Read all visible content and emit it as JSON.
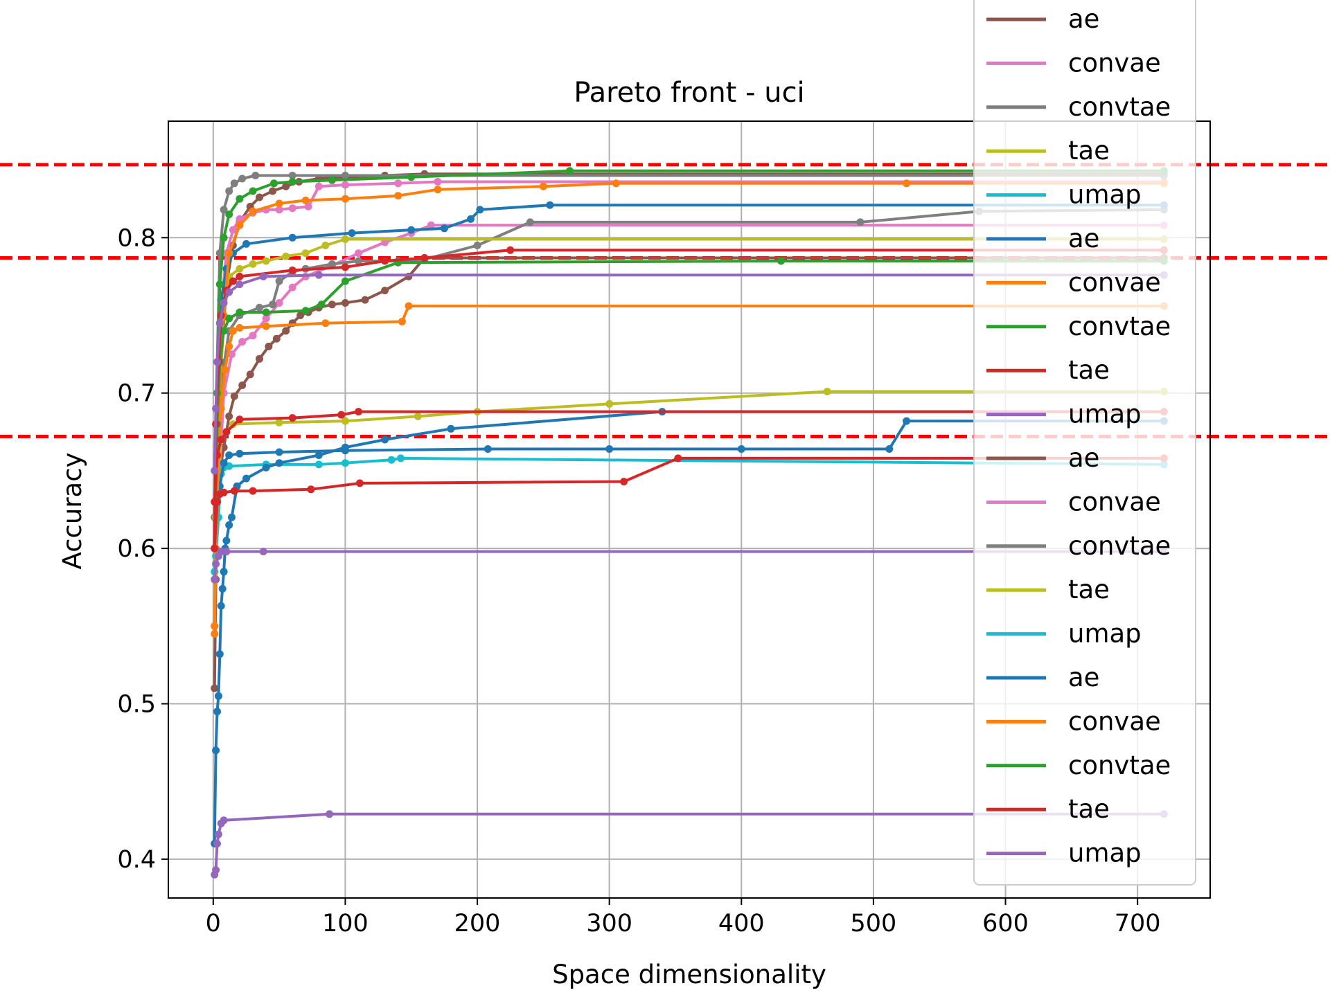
{
  "chart_data": {
    "type": "line",
    "title": "Pareto front - uci",
    "xlabel": "Space dimensionality",
    "ylabel": "Accuracy",
    "xlim": [
      -34,
      755
    ],
    "ylim": [
      0.375,
      0.875
    ],
    "xticks": [
      0,
      100,
      200,
      300,
      400,
      500,
      600,
      700
    ],
    "yticks": [
      0.4,
      0.5,
      0.6,
      0.7,
      0.8
    ],
    "grid": true,
    "legend_position": "upper-right",
    "reference_lines": [
      {
        "y": 0.847,
        "color": "#ff0000",
        "style": "dashed"
      },
      {
        "y": 0.787,
        "color": "#ff0000",
        "style": "dashed"
      },
      {
        "y": 0.672,
        "color": "#ff0000",
        "style": "dashed"
      }
    ],
    "colors": {
      "ae_a": "#8c564b",
      "convae_a": "#e377c2",
      "convtae_a": "#7f7f7f",
      "tae_a": "#bcbd22",
      "umap_a": "#17becf",
      "ae_b": "#1f77b4",
      "convae_b": "#ff7f0e",
      "convtae_b": "#2ca02c",
      "tae_b": "#d62728",
      "umap_b": "#9467bd"
    },
    "series": [
      {
        "name": "ae",
        "color": "#8c564b",
        "x": [
          1,
          2,
          3,
          5,
          8,
          12,
          16,
          22,
          28,
          35,
          42,
          48,
          55,
          60,
          66,
          72,
          80,
          90,
          100,
          115,
          130,
          148,
          160,
          720
        ],
        "y": [
          0.51,
          0.58,
          0.63,
          0.65,
          0.665,
          0.685,
          0.698,
          0.705,
          0.712,
          0.722,
          0.73,
          0.735,
          0.74,
          0.745,
          0.75,
          0.752,
          0.755,
          0.757,
          0.758,
          0.76,
          0.766,
          0.775,
          0.787,
          0.787
        ]
      },
      {
        "name": "ae",
        "color": "#8c564b",
        "x": [
          1,
          3,
          6,
          10,
          15,
          20,
          28,
          35,
          45,
          55,
          65,
          80,
          100,
          130,
          160,
          720
        ],
        "y": [
          0.55,
          0.64,
          0.72,
          0.77,
          0.795,
          0.81,
          0.82,
          0.826,
          0.83,
          0.833,
          0.836,
          0.838,
          0.839,
          0.84,
          0.841,
          0.841
        ]
      },
      {
        "name": "convae",
        "color": "#e377c2",
        "x": [
          1,
          3,
          6,
          10,
          15,
          20,
          30,
          40,
          50,
          60,
          72,
          80,
          100,
          140,
          170,
          720
        ],
        "y": [
          0.6,
          0.7,
          0.755,
          0.79,
          0.805,
          0.812,
          0.816,
          0.818,
          0.818,
          0.819,
          0.82,
          0.833,
          0.834,
          0.835,
          0.836,
          0.836
        ]
      },
      {
        "name": "convae",
        "color": "#e377c2",
        "x": [
          3,
          8,
          14,
          22,
          30,
          40,
          50,
          60,
          70,
          90,
          110,
          130,
          150,
          165,
          720
        ],
        "y": [
          0.62,
          0.7,
          0.725,
          0.733,
          0.737,
          0.748,
          0.758,
          0.768,
          0.775,
          0.782,
          0.79,
          0.797,
          0.803,
          0.808,
          0.808
        ]
      },
      {
        "name": "convtae",
        "color": "#7f7f7f",
        "x": [
          1,
          3,
          5,
          8,
          12,
          16,
          22,
          32,
          60,
          100,
          720
        ],
        "y": [
          0.62,
          0.72,
          0.79,
          0.818,
          0.83,
          0.835,
          0.838,
          0.84,
          0.84,
          0.84,
          0.84
        ]
      },
      {
        "name": "convtae",
        "color": "#7f7f7f",
        "x": [
          5,
          12,
          20,
          35,
          45,
          50,
          60,
          70,
          90,
          110,
          140,
          160,
          200,
          240,
          490,
          580,
          720
        ],
        "y": [
          0.7,
          0.74,
          0.75,
          0.755,
          0.757,
          0.772,
          0.778,
          0.78,
          0.783,
          0.785,
          0.785,
          0.786,
          0.795,
          0.81,
          0.81,
          0.817,
          0.818
        ]
      },
      {
        "name": "tae",
        "color": "#bcbd22",
        "x": [
          2,
          5,
          8,
          12,
          20,
          30,
          40,
          55,
          70,
          85,
          100,
          720
        ],
        "y": [
          0.62,
          0.72,
          0.76,
          0.775,
          0.78,
          0.783,
          0.785,
          0.788,
          0.79,
          0.795,
          0.799,
          0.799
        ]
      },
      {
        "name": "tae",
        "color": "#bcbd22",
        "x": [
          1,
          3,
          6,
          10,
          15,
          50,
          100,
          155,
          200,
          300,
          465,
          720
        ],
        "y": [
          0.58,
          0.64,
          0.67,
          0.675,
          0.68,
          0.681,
          0.682,
          0.685,
          0.688,
          0.693,
          0.701,
          0.701
        ]
      },
      {
        "name": "umap",
        "color": "#17becf",
        "x": [
          1,
          2,
          4,
          6,
          8,
          12,
          40,
          80,
          100,
          135,
          142,
          720
        ],
        "y": [
          0.585,
          0.595,
          0.62,
          0.648,
          0.652,
          0.653,
          0.654,
          0.654,
          0.655,
          0.657,
          0.658,
          0.654
        ]
      },
      {
        "name": "ae",
        "color": "#1f77b4",
        "x": [
          1,
          3,
          6,
          10,
          15,
          25,
          60,
          105,
          150,
          175,
          195,
          202,
          255,
          720
        ],
        "y": [
          0.6,
          0.7,
          0.76,
          0.78,
          0.79,
          0.796,
          0.8,
          0.803,
          0.805,
          0.806,
          0.812,
          0.818,
          0.821,
          0.821
        ]
      },
      {
        "name": "ae",
        "color": "#1f77b4",
        "x": [
          1,
          2,
          3,
          4,
          5,
          6,
          7,
          8,
          9,
          10,
          12,
          14,
          18,
          25,
          40,
          50,
          80,
          100,
          130,
          180,
          340,
          720
        ],
        "y": [
          0.41,
          0.47,
          0.495,
          0.505,
          0.532,
          0.563,
          0.574,
          0.585,
          0.6,
          0.605,
          0.615,
          0.62,
          0.64,
          0.645,
          0.652,
          0.655,
          0.66,
          0.665,
          0.67,
          0.677,
          0.688,
          0.688
        ]
      },
      {
        "name": "ae",
        "color": "#1f77b4",
        "x": [
          5,
          8,
          12,
          20,
          50,
          100,
          208,
          300,
          400,
          512,
          525,
          720
        ],
        "y": [
          0.64,
          0.655,
          0.66,
          0.661,
          0.662,
          0.663,
          0.664,
          0.664,
          0.664,
          0.664,
          0.682,
          0.682
        ]
      },
      {
        "name": "convae",
        "color": "#ff7f0e",
        "x": [
          1,
          3,
          5,
          8,
          12,
          20,
          30,
          50,
          70,
          100,
          140,
          170,
          250,
          305,
          525,
          720
        ],
        "y": [
          0.55,
          0.65,
          0.7,
          0.75,
          0.79,
          0.808,
          0.817,
          0.822,
          0.824,
          0.825,
          0.827,
          0.831,
          0.833,
          0.835,
          0.835,
          0.835
        ]
      },
      {
        "name": "convae",
        "color": "#ff7f0e",
        "x": [
          1,
          2,
          4,
          6,
          9,
          12,
          15,
          20,
          40,
          85,
          143,
          148,
          720
        ],
        "y": [
          0.545,
          0.6,
          0.66,
          0.69,
          0.715,
          0.73,
          0.74,
          0.742,
          0.743,
          0.745,
          0.746,
          0.756,
          0.756
        ]
      },
      {
        "name": "convtae",
        "color": "#2ca02c",
        "x": [
          1,
          3,
          5,
          8,
          12,
          20,
          30,
          46,
          60,
          90,
          150,
          270,
          720
        ],
        "y": [
          0.6,
          0.7,
          0.77,
          0.8,
          0.815,
          0.825,
          0.83,
          0.835,
          0.836,
          0.837,
          0.839,
          0.843,
          0.843
        ]
      },
      {
        "name": "convtae",
        "color": "#2ca02c",
        "x": [
          1,
          3,
          5,
          8,
          12,
          20,
          40,
          70,
          82,
          100,
          140,
          430,
          720
        ],
        "y": [
          0.6,
          0.68,
          0.72,
          0.74,
          0.748,
          0.752,
          0.752,
          0.753,
          0.757,
          0.772,
          0.784,
          0.785,
          0.785
        ]
      },
      {
        "name": "tae",
        "color": "#d62728",
        "x": [
          1,
          2,
          4,
          6,
          10,
          15,
          20,
          60,
          100,
          130,
          160,
          225,
          720
        ],
        "y": [
          0.6,
          0.68,
          0.72,
          0.75,
          0.766,
          0.772,
          0.775,
          0.779,
          0.781,
          0.785,
          0.787,
          0.792,
          0.792
        ]
      },
      {
        "name": "tae",
        "color": "#d62728",
        "x": [
          1,
          3,
          5,
          8,
          16,
          30,
          74,
          111,
          311,
          352,
          720
        ],
        "y": [
          0.6,
          0.63,
          0.635,
          0.636,
          0.637,
          0.637,
          0.638,
          0.642,
          0.643,
          0.658,
          0.658
        ]
      },
      {
        "name": "tae",
        "color": "#d62728",
        "x": [
          1,
          3,
          6,
          10,
          20,
          60,
          97,
          110,
          720
        ],
        "y": [
          0.63,
          0.66,
          0.67,
          0.675,
          0.683,
          0.684,
          0.686,
          0.688,
          0.688
        ]
      },
      {
        "name": "umap",
        "color": "#9467bd",
        "x": [
          1,
          2,
          3,
          5,
          8,
          12,
          20,
          38,
          80,
          720
        ],
        "y": [
          0.65,
          0.69,
          0.72,
          0.745,
          0.758,
          0.765,
          0.77,
          0.775,
          0.776,
          0.776
        ]
      },
      {
        "name": "umap",
        "color": "#9467bd",
        "x": [
          1,
          2,
          4,
          6,
          10,
          38,
          720
        ],
        "y": [
          0.58,
          0.59,
          0.595,
          0.598,
          0.598,
          0.598,
          0.598
        ]
      },
      {
        "name": "umap",
        "color": "#9467bd",
        "x": [
          1,
          2,
          3,
          4,
          6,
          8,
          88,
          720
        ],
        "y": [
          0.39,
          0.393,
          0.41,
          0.416,
          0.423,
          0.425,
          0.429,
          0.429
        ]
      }
    ],
    "legend": [
      {
        "name": "ae",
        "color": "#8c564b"
      },
      {
        "name": "convae",
        "color": "#e377c2"
      },
      {
        "name": "convtae",
        "color": "#7f7f7f"
      },
      {
        "name": "tae",
        "color": "#bcbd22"
      },
      {
        "name": "umap",
        "color": "#17becf"
      },
      {
        "name": "ae",
        "color": "#1f77b4"
      },
      {
        "name": "convae",
        "color": "#ff7f0e"
      },
      {
        "name": "convtae",
        "color": "#2ca02c"
      },
      {
        "name": "tae",
        "color": "#d62728"
      },
      {
        "name": "umap",
        "color": "#9467bd"
      },
      {
        "name": "ae",
        "color": "#8c564b"
      },
      {
        "name": "convae",
        "color": "#e377c2"
      },
      {
        "name": "convtae",
        "color": "#7f7f7f"
      },
      {
        "name": "tae",
        "color": "#bcbd22"
      },
      {
        "name": "umap",
        "color": "#17becf"
      },
      {
        "name": "ae",
        "color": "#1f77b4"
      },
      {
        "name": "convae",
        "color": "#ff7f0e"
      },
      {
        "name": "convtae",
        "color": "#2ca02c"
      },
      {
        "name": "tae",
        "color": "#d62728"
      },
      {
        "name": "umap",
        "color": "#9467bd"
      }
    ]
  }
}
